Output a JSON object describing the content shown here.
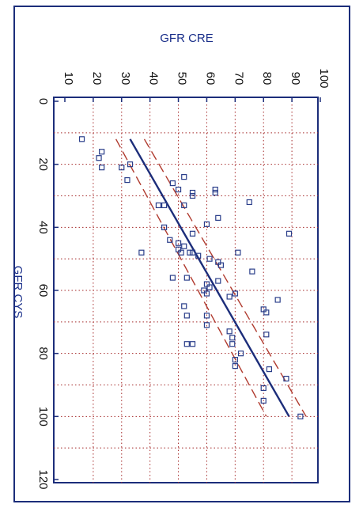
{
  "colors": {
    "frame": "#1c2d7a",
    "grid": "#a52a2a",
    "points": "#2a3e8a",
    "regression": "#1c2d7a",
    "confidence": "#b03a2e",
    "axis_title": "#1a2f8a"
  },
  "chart_data": {
    "type": "scatter",
    "title": "",
    "xlabel": "GFR CYS",
    "ylabel": "GFR CRE",
    "orientation": "rotated-90-clockwise",
    "grid": true,
    "legend": "none",
    "xlim": [
      0,
      120
    ],
    "ylim": [
      10,
      100
    ],
    "x_ticks": [
      "0",
      "20",
      "40",
      "60",
      "80",
      "100",
      "120"
    ],
    "y_ticks": [
      "10",
      "20",
      "30",
      "40",
      "50",
      "60",
      "70",
      "80",
      "90",
      "100"
    ],
    "points": [
      {
        "x": 12,
        "y": 16
      },
      {
        "x": 16,
        "y": 23
      },
      {
        "x": 18,
        "y": 22
      },
      {
        "x": 20,
        "y": 33
      },
      {
        "x": 21,
        "y": 30
      },
      {
        "x": 21,
        "y": 23
      },
      {
        "x": 25,
        "y": 32
      },
      {
        "x": 24,
        "y": 52
      },
      {
        "x": 26,
        "y": 48
      },
      {
        "x": 28,
        "y": 50
      },
      {
        "x": 28,
        "y": 63
      },
      {
        "x": 29,
        "y": 55
      },
      {
        "x": 29,
        "y": 63
      },
      {
        "x": 30,
        "y": 55
      },
      {
        "x": 32,
        "y": 75
      },
      {
        "x": 33,
        "y": 52
      },
      {
        "x": 33,
        "y": 45
      },
      {
        "x": 33,
        "y": 43
      },
      {
        "x": 37,
        "y": 64
      },
      {
        "x": 39,
        "y": 60
      },
      {
        "x": 40,
        "y": 45
      },
      {
        "x": 42,
        "y": 55
      },
      {
        "x": 42,
        "y": 89
      },
      {
        "x": 44,
        "y": 47
      },
      {
        "x": 45,
        "y": 50
      },
      {
        "x": 46,
        "y": 52
      },
      {
        "x": 47,
        "y": 50
      },
      {
        "x": 48,
        "y": 37
      },
      {
        "x": 48,
        "y": 51
      },
      {
        "x": 48,
        "y": 55
      },
      {
        "x": 48,
        "y": 54
      },
      {
        "x": 48,
        "y": 71
      },
      {
        "x": 49,
        "y": 57
      },
      {
        "x": 50,
        "y": 61
      },
      {
        "x": 51,
        "y": 64
      },
      {
        "x": 52,
        "y": 65
      },
      {
        "x": 54,
        "y": 76
      },
      {
        "x": 56,
        "y": 48
      },
      {
        "x": 56,
        "y": 53
      },
      {
        "x": 57,
        "y": 64
      },
      {
        "x": 58,
        "y": 60
      },
      {
        "x": 59,
        "y": 61
      },
      {
        "x": 60,
        "y": 59
      },
      {
        "x": 61,
        "y": 60
      },
      {
        "x": 61,
        "y": 70
      },
      {
        "x": 62,
        "y": 68
      },
      {
        "x": 63,
        "y": 85
      },
      {
        "x": 65,
        "y": 52
      },
      {
        "x": 66,
        "y": 80
      },
      {
        "x": 67,
        "y": 81
      },
      {
        "x": 68,
        "y": 53
      },
      {
        "x": 68,
        "y": 60
      },
      {
        "x": 71,
        "y": 60
      },
      {
        "x": 73,
        "y": 68
      },
      {
        "x": 74,
        "y": 81
      },
      {
        "x": 75,
        "y": 69
      },
      {
        "x": 77,
        "y": 53
      },
      {
        "x": 77,
        "y": 55
      },
      {
        "x": 77,
        "y": 69
      },
      {
        "x": 80,
        "y": 72
      },
      {
        "x": 82,
        "y": 70
      },
      {
        "x": 84,
        "y": 70
      },
      {
        "x": 85,
        "y": 82
      },
      {
        "x": 88,
        "y": 88
      },
      {
        "x": 91,
        "y": 80
      },
      {
        "x": 95,
        "y": 80
      },
      {
        "x": 100,
        "y": 93
      }
    ],
    "regression_line": {
      "x": [
        12,
        100
      ],
      "y": [
        33,
        89
      ]
    },
    "confidence_band": {
      "upper": {
        "x": [
          12,
          100
        ],
        "y": [
          38,
          95
        ]
      },
      "lower": {
        "x": [
          12,
          100
        ],
        "y": [
          28,
          81
        ]
      }
    }
  }
}
